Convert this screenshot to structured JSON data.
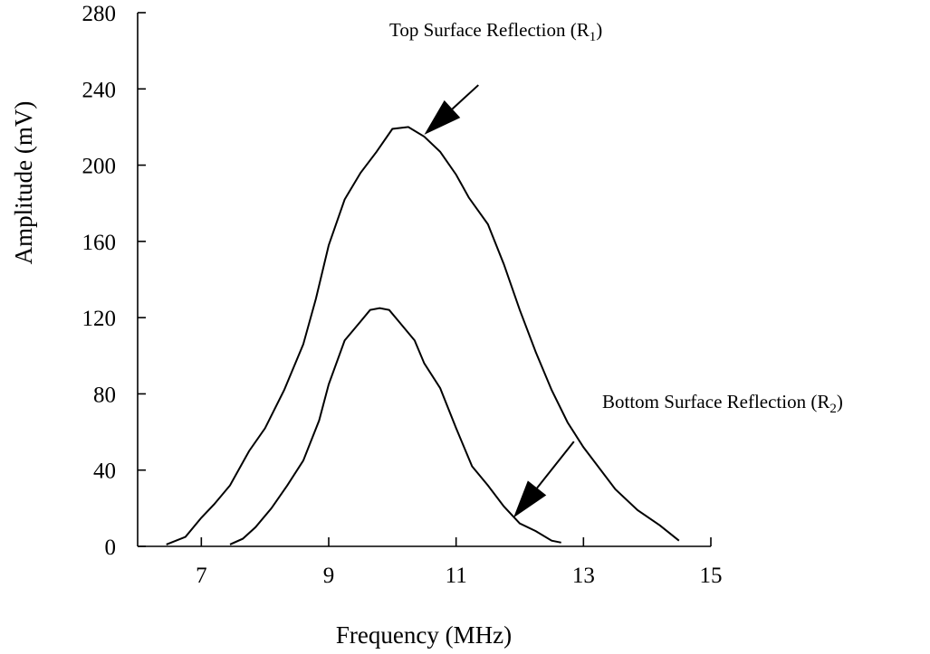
{
  "chart_data": {
    "type": "line",
    "xlabel": "Frequency (MHz)",
    "ylabel": "Amplitude (mV)",
    "xlim": [
      6,
      15
    ],
    "ylim": [
      0,
      280
    ],
    "xticks": [
      7,
      9,
      11,
      13,
      15
    ],
    "yticks": [
      0,
      40,
      80,
      120,
      160,
      200,
      240,
      280
    ],
    "grid": false,
    "series": [
      {
        "key": "top",
        "x": [
          6.45,
          6.75,
          7.0,
          7.2,
          7.45,
          7.75,
          8.0,
          8.3,
          8.6,
          8.8,
          9.0,
          9.25,
          9.5,
          9.75,
          10.0,
          10.25,
          10.5,
          10.75,
          11.0,
          11.2,
          11.5,
          11.75,
          12.0,
          12.25,
          12.5,
          12.75,
          13.0,
          13.5,
          13.85,
          14.2,
          14.5
        ],
        "y": [
          1,
          5,
          15,
          22,
          32,
          50,
          62,
          82,
          106,
          130,
          158,
          182,
          196,
          207,
          219,
          220,
          215,
          207,
          195,
          183,
          169,
          148,
          124,
          102,
          82,
          65,
          52,
          30,
          19,
          11,
          3
        ]
      },
      {
        "key": "bottom",
        "x": [
          7.45,
          7.65,
          7.85,
          8.1,
          8.35,
          8.6,
          8.85,
          9.0,
          9.25,
          9.5,
          9.65,
          9.8,
          9.95,
          10.1,
          10.35,
          10.5,
          10.75,
          11.0,
          11.25,
          11.5,
          11.75,
          12.0,
          12.25,
          12.5,
          12.65
        ],
        "y": [
          1,
          4,
          10,
          20,
          32,
          45,
          66,
          85,
          108,
          118,
          124,
          125,
          124,
          118,
          108,
          96,
          83,
          62,
          42,
          32,
          21,
          12,
          8,
          3,
          2
        ]
      }
    ],
    "annotations": [
      {
        "key": "top",
        "text": "Top Surface Reflection (R",
        "subscript": "1",
        "close": ")",
        "tail": [
          11.35,
          242
        ],
        "head": [
          10.5,
          216
        ]
      },
      {
        "key": "bottom",
        "text": "Bottom Surface Reflection (R",
        "subscript": "2",
        "close": ")",
        "tail": [
          12.85,
          55
        ],
        "head": [
          11.9,
          15
        ]
      }
    ]
  }
}
